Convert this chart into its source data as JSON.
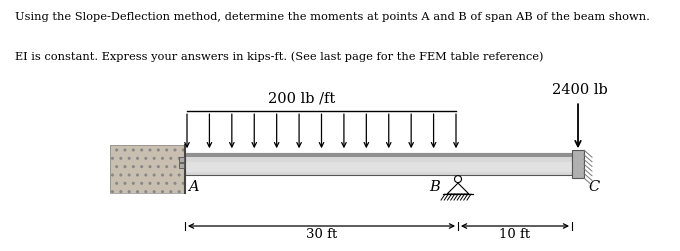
{
  "text_line1": "Using the Slope-Deflection method, determine the moments at points A and B of span AB of the beam shown.",
  "text_line2": "EI is constant. Express your answers in kips-ft. (See last page for the FEM table reference)",
  "load_label": "200 lb /ft",
  "point_load_label": "2400 lb",
  "label_A": "A",
  "label_B": "B",
  "label_C": "C",
  "span_AB_label": "30 ft",
  "span_BC_label": "10 ft",
  "background": "#ffffff",
  "num_dist_arrows": 13,
  "font_size_text": 8.2,
  "font_size_labels": 10.5,
  "font_size_dim": 9.5,
  "font_size_load": 10.5
}
